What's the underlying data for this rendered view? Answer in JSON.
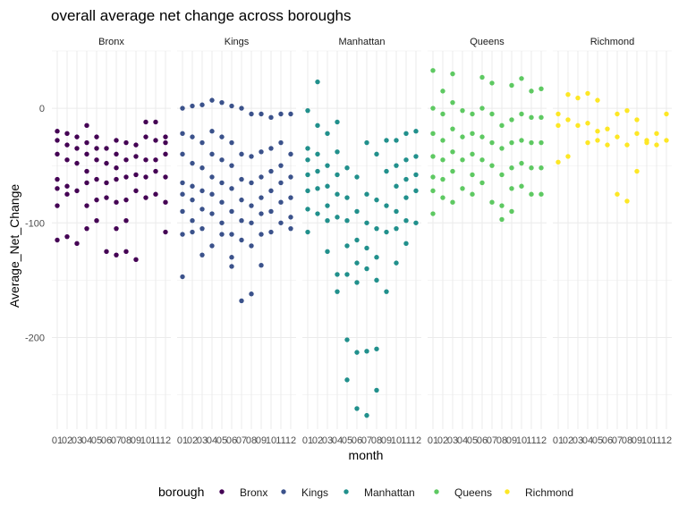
{
  "chart_data": {
    "type": "scatter",
    "title": "overall average net change across boroughs",
    "xlabel": "month",
    "ylabel": "Average_Net_Change",
    "ylim": [
      -280,
      50
    ],
    "y_ticks": [
      0,
      -100,
      -200
    ],
    "y_tick_labels": [
      "0",
      "-100",
      "-200"
    ],
    "x_ticks": [
      "01",
      "02",
      "03",
      "04",
      "05",
      "06",
      "07",
      "08",
      "09",
      "10",
      "11",
      "12"
    ],
    "facet_by": "borough",
    "legend": {
      "title": "borough",
      "position": "bottom"
    },
    "grid": true,
    "panels": [
      {
        "name": "Bronx",
        "color": "#440154",
        "points": [
          [
            1,
            -20
          ],
          [
            1,
            -28
          ],
          [
            1,
            -40
          ],
          [
            1,
            -62
          ],
          [
            1,
            -70
          ],
          [
            1,
            -85
          ],
          [
            1,
            -115
          ],
          [
            2,
            -22
          ],
          [
            2,
            -32
          ],
          [
            2,
            -45
          ],
          [
            2,
            -68
          ],
          [
            2,
            -75
          ],
          [
            2,
            -112
          ],
          [
            3,
            -25
          ],
          [
            3,
            -35
          ],
          [
            3,
            -48
          ],
          [
            3,
            -72
          ],
          [
            3,
            -118
          ],
          [
            4,
            -15
          ],
          [
            4,
            -30
          ],
          [
            4,
            -40
          ],
          [
            4,
            -55
          ],
          [
            4,
            -65
          ],
          [
            4,
            -85
          ],
          [
            4,
            -105
          ],
          [
            5,
            -25
          ],
          [
            5,
            -35
          ],
          [
            5,
            -45
          ],
          [
            5,
            -62
          ],
          [
            5,
            -80
          ],
          [
            5,
            -98
          ],
          [
            6,
            -35
          ],
          [
            6,
            -48
          ],
          [
            6,
            -65
          ],
          [
            6,
            -78
          ],
          [
            6,
            -125
          ],
          [
            7,
            -28
          ],
          [
            7,
            -40
          ],
          [
            7,
            -52
          ],
          [
            7,
            -62
          ],
          [
            7,
            -82
          ],
          [
            7,
            -105
          ],
          [
            7,
            -128
          ],
          [
            8,
            -30
          ],
          [
            8,
            -45
          ],
          [
            8,
            -60
          ],
          [
            8,
            -80
          ],
          [
            8,
            -98
          ],
          [
            8,
            -125
          ],
          [
            9,
            -32
          ],
          [
            9,
            -42
          ],
          [
            9,
            -58
          ],
          [
            9,
            -72
          ],
          [
            9,
            -132
          ],
          [
            10,
            -12
          ],
          [
            10,
            -25
          ],
          [
            10,
            -45
          ],
          [
            10,
            -60
          ],
          [
            10,
            -78
          ],
          [
            11,
            -12
          ],
          [
            11,
            -28
          ],
          [
            11,
            -45
          ],
          [
            11,
            -55
          ],
          [
            11,
            -75
          ],
          [
            12,
            -25
          ],
          [
            12,
            -30
          ],
          [
            12,
            -40
          ],
          [
            12,
            -60
          ],
          [
            12,
            -82
          ],
          [
            12,
            -108
          ]
        ]
      },
      {
        "name": "Kings",
        "color": "#3b528b",
        "points": [
          [
            1,
            0
          ],
          [
            1,
            -22
          ],
          [
            1,
            -40
          ],
          [
            1,
            -65
          ],
          [
            1,
            -75
          ],
          [
            1,
            -90
          ],
          [
            1,
            -110
          ],
          [
            1,
            -147
          ],
          [
            2,
            2
          ],
          [
            2,
            -25
          ],
          [
            2,
            -48
          ],
          [
            2,
            -68
          ],
          [
            2,
            -80
          ],
          [
            2,
            -98
          ],
          [
            2,
            -108
          ],
          [
            3,
            3
          ],
          [
            3,
            -30
          ],
          [
            3,
            -52
          ],
          [
            3,
            -72
          ],
          [
            3,
            -88
          ],
          [
            3,
            -105
          ],
          [
            3,
            -128
          ],
          [
            4,
            7
          ],
          [
            4,
            -20
          ],
          [
            4,
            -40
          ],
          [
            4,
            -60
          ],
          [
            4,
            -75
          ],
          [
            4,
            -92
          ],
          [
            4,
            -120
          ],
          [
            5,
            5
          ],
          [
            5,
            -25
          ],
          [
            5,
            -45
          ],
          [
            5,
            -65
          ],
          [
            5,
            -82
          ],
          [
            5,
            -100
          ],
          [
            5,
            -110
          ],
          [
            6,
            2
          ],
          [
            6,
            -30
          ],
          [
            6,
            -50
          ],
          [
            6,
            -70
          ],
          [
            6,
            -90
          ],
          [
            6,
            -110
          ],
          [
            6,
            -130
          ],
          [
            6,
            -138
          ],
          [
            7,
            0
          ],
          [
            7,
            -40
          ],
          [
            7,
            -62
          ],
          [
            7,
            -80
          ],
          [
            7,
            -98
          ],
          [
            7,
            -115
          ],
          [
            7,
            -168
          ],
          [
            8,
            -5
          ],
          [
            8,
            -42
          ],
          [
            8,
            -65
          ],
          [
            8,
            -85
          ],
          [
            8,
            -100
          ],
          [
            8,
            -120
          ],
          [
            8,
            -162
          ],
          [
            9,
            -5
          ],
          [
            9,
            -38
          ],
          [
            9,
            -60
          ],
          [
            9,
            -78
          ],
          [
            9,
            -92
          ],
          [
            9,
            -110
          ],
          [
            9,
            -137
          ],
          [
            10,
            -8
          ],
          [
            10,
            -35
          ],
          [
            10,
            -55
          ],
          [
            10,
            -72
          ],
          [
            10,
            -90
          ],
          [
            10,
            -108
          ],
          [
            11,
            -5
          ],
          [
            11,
            -30
          ],
          [
            11,
            -50
          ],
          [
            11,
            -65
          ],
          [
            11,
            -82
          ],
          [
            11,
            -100
          ],
          [
            12,
            -5
          ],
          [
            12,
            -40
          ],
          [
            12,
            -60
          ],
          [
            12,
            -78
          ],
          [
            12,
            -95
          ],
          [
            12,
            -105
          ]
        ]
      },
      {
        "name": "Manhattan",
        "color": "#21908c",
        "points": [
          [
            1,
            -2
          ],
          [
            1,
            -35
          ],
          [
            1,
            -45
          ],
          [
            1,
            -58
          ],
          [
            1,
            -72
          ],
          [
            1,
            -88
          ],
          [
            1,
            -108
          ],
          [
            2,
            23
          ],
          [
            2,
            -15
          ],
          [
            2,
            -40
          ],
          [
            2,
            -55
          ],
          [
            2,
            -70
          ],
          [
            2,
            -92
          ],
          [
            3,
            -22
          ],
          [
            3,
            -50
          ],
          [
            3,
            -68
          ],
          [
            3,
            -85
          ],
          [
            3,
            -98
          ],
          [
            3,
            -125
          ],
          [
            4,
            -12
          ],
          [
            4,
            -38
          ],
          [
            4,
            -58
          ],
          [
            4,
            -75
          ],
          [
            4,
            -95
          ],
          [
            4,
            -145
          ],
          [
            4,
            -160
          ],
          [
            5,
            -52
          ],
          [
            5,
            -78
          ],
          [
            5,
            -98
          ],
          [
            5,
            -120
          ],
          [
            5,
            -145
          ],
          [
            5,
            -202
          ],
          [
            5,
            -237
          ],
          [
            6,
            -60
          ],
          [
            6,
            -90
          ],
          [
            6,
            -115
          ],
          [
            6,
            -135
          ],
          [
            6,
            -152
          ],
          [
            6,
            -213
          ],
          [
            6,
            -262
          ],
          [
            7,
            -30
          ],
          [
            7,
            -75
          ],
          [
            7,
            -100
          ],
          [
            7,
            -122
          ],
          [
            7,
            -140
          ],
          [
            7,
            -212
          ],
          [
            7,
            -268
          ],
          [
            8,
            -40
          ],
          [
            8,
            -80
          ],
          [
            8,
            -105
          ],
          [
            8,
            -130
          ],
          [
            8,
            -150
          ],
          [
            8,
            -210
          ],
          [
            8,
            -246
          ],
          [
            9,
            -28
          ],
          [
            9,
            -55
          ],
          [
            9,
            -85
          ],
          [
            9,
            -108
          ],
          [
            9,
            -160
          ],
          [
            10,
            -28
          ],
          [
            10,
            -50
          ],
          [
            10,
            -68
          ],
          [
            10,
            -90
          ],
          [
            10,
            -105
          ],
          [
            10,
            -135
          ],
          [
            11,
            -22
          ],
          [
            11,
            -45
          ],
          [
            11,
            -62
          ],
          [
            11,
            -78
          ],
          [
            11,
            -98
          ],
          [
            11,
            -118
          ],
          [
            12,
            -20
          ],
          [
            12,
            -42
          ],
          [
            12,
            -58
          ],
          [
            12,
            -72
          ],
          [
            12,
            -100
          ]
        ]
      },
      {
        "name": "Queens",
        "color": "#5ec962",
        "points": [
          [
            1,
            33
          ],
          [
            1,
            0
          ],
          [
            1,
            -22
          ],
          [
            1,
            -42
          ],
          [
            1,
            -60
          ],
          [
            1,
            -72
          ],
          [
            1,
            -92
          ],
          [
            2,
            15
          ],
          [
            2,
            -5
          ],
          [
            2,
            -28
          ],
          [
            2,
            -45
          ],
          [
            2,
            -62
          ],
          [
            2,
            -78
          ],
          [
            3,
            30
          ],
          [
            3,
            5
          ],
          [
            3,
            -18
          ],
          [
            3,
            -38
          ],
          [
            3,
            -55
          ],
          [
            3,
            -82
          ],
          [
            4,
            -2
          ],
          [
            4,
            -25
          ],
          [
            4,
            -45
          ],
          [
            4,
            -70
          ],
          [
            5,
            -5
          ],
          [
            5,
            -22
          ],
          [
            5,
            -40
          ],
          [
            5,
            -58
          ],
          [
            5,
            -75
          ],
          [
            6,
            27
          ],
          [
            6,
            0
          ],
          [
            6,
            -25
          ],
          [
            6,
            -45
          ],
          [
            6,
            -65
          ],
          [
            7,
            22
          ],
          [
            7,
            -5
          ],
          [
            7,
            -30
          ],
          [
            7,
            -50
          ],
          [
            7,
            -82
          ],
          [
            8,
            -15
          ],
          [
            8,
            -35
          ],
          [
            8,
            -58
          ],
          [
            8,
            -85
          ],
          [
            8,
            -97
          ],
          [
            9,
            20
          ],
          [
            9,
            -10
          ],
          [
            9,
            -30
          ],
          [
            9,
            -52
          ],
          [
            9,
            -70
          ],
          [
            9,
            -90
          ],
          [
            10,
            26
          ],
          [
            10,
            -5
          ],
          [
            10,
            -28
          ],
          [
            10,
            -48
          ],
          [
            10,
            -68
          ],
          [
            11,
            15
          ],
          [
            11,
            -8
          ],
          [
            11,
            -30
          ],
          [
            11,
            -52
          ],
          [
            11,
            -75
          ],
          [
            12,
            17
          ],
          [
            12,
            -8
          ],
          [
            12,
            -30
          ],
          [
            12,
            -52
          ],
          [
            12,
            -75
          ]
        ]
      },
      {
        "name": "Richmond",
        "color": "#fde725",
        "points": [
          [
            1,
            -5
          ],
          [
            1,
            -15
          ],
          [
            1,
            -47
          ],
          [
            2,
            12
          ],
          [
            2,
            -10
          ],
          [
            2,
            -42
          ],
          [
            3,
            9
          ],
          [
            3,
            -15
          ],
          [
            4,
            13
          ],
          [
            4,
            -13
          ],
          [
            4,
            -30
          ],
          [
            5,
            7
          ],
          [
            5,
            -20
          ],
          [
            5,
            -28
          ],
          [
            6,
            -18
          ],
          [
            6,
            -32
          ],
          [
            7,
            -5
          ],
          [
            7,
            -25
          ],
          [
            7,
            -75
          ],
          [
            8,
            -2
          ],
          [
            8,
            -32
          ],
          [
            8,
            -81
          ],
          [
            9,
            -10
          ],
          [
            9,
            -22
          ],
          [
            9,
            -55
          ],
          [
            10,
            -28
          ],
          [
            10,
            -30
          ],
          [
            11,
            -22
          ],
          [
            11,
            -32
          ],
          [
            12,
            -5
          ],
          [
            12,
            -28
          ]
        ]
      }
    ]
  }
}
